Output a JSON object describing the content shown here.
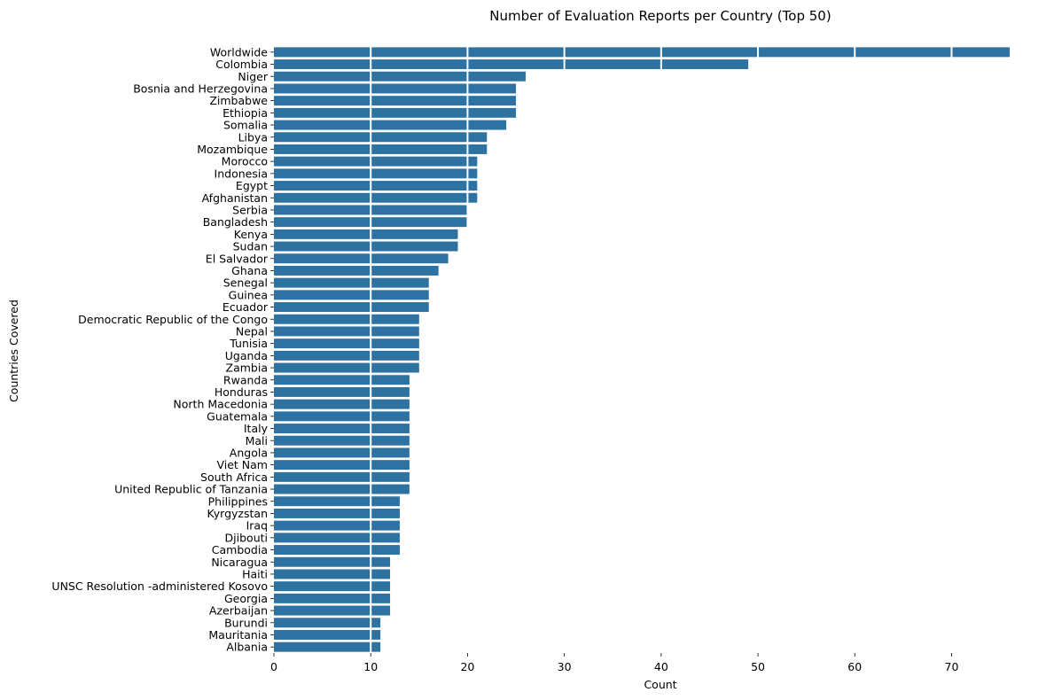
{
  "chart_data": {
    "type": "bar",
    "orientation": "horizontal",
    "title": "Number of Evaluation Reports per Country (Top 50)",
    "xlabel": "Count",
    "ylabel": "Countries Covered",
    "xlim": [
      0,
      76
    ],
    "xticks": [
      0,
      10,
      20,
      30,
      40,
      50,
      60,
      70
    ],
    "grid": "x-gridlines white, drawn over bars",
    "bar_color": "#2e72a2",
    "categories": [
      "Worldwide",
      "Colombia",
      "Niger",
      "Bosnia and Herzegovina",
      "Zimbabwe",
      "Ethiopia",
      "Somalia",
      "Libya",
      "Mozambique",
      "Morocco",
      "Indonesia",
      "Egypt",
      "Afghanistan",
      "Serbia",
      "Bangladesh",
      "Kenya",
      "Sudan",
      "El Salvador",
      "Ghana",
      "Senegal",
      "Guinea",
      "Ecuador",
      "Democratic Republic of the Congo",
      "Nepal",
      "Tunisia",
      "Uganda",
      "Zambia",
      "Rwanda",
      "Honduras",
      "North Macedonia",
      "Guatemala",
      "Italy",
      "Mali",
      "Angola",
      "Viet Nam",
      "South Africa",
      "United Republic of Tanzania",
      "Philippines",
      "Kyrgyzstan",
      "Iraq",
      "Djibouti",
      "Cambodia",
      "Nicaragua",
      "Haiti",
      "UNSC Resolution -administered Kosovo",
      "Georgia",
      "Azerbaijan",
      "Burundi",
      "Mauritania",
      "Albania"
    ],
    "values": [
      76,
      49,
      26,
      25,
      25,
      25,
      24,
      22,
      22,
      21,
      21,
      21,
      21,
      20,
      20,
      19,
      19,
      18,
      17,
      16,
      16,
      16,
      15,
      15,
      15,
      15,
      15,
      14,
      14,
      14,
      14,
      14,
      14,
      14,
      14,
      14,
      14,
      13,
      13,
      13,
      13,
      13,
      12,
      12,
      12,
      12,
      12,
      11,
      11,
      11
    ]
  }
}
